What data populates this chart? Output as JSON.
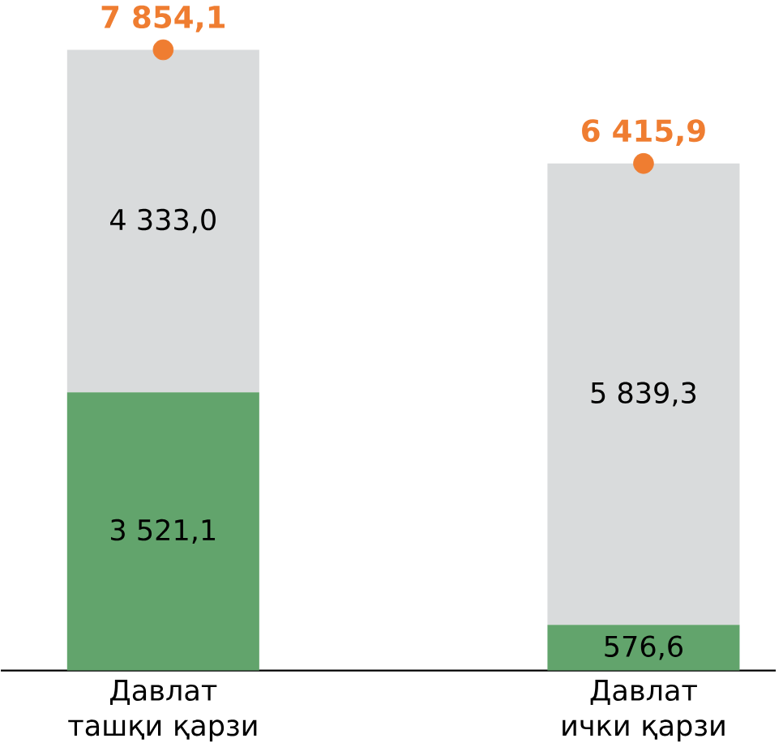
{
  "chart_data": {
    "type": "bar",
    "stacked": true,
    "categories": [
      "Давлат ташқи қарзи",
      "Давлат ички қарзи"
    ],
    "series": [
      {
        "color": "#62a46c",
        "values": [
          3521.1,
          576.6
        ],
        "value_labels": [
          "3 521,1",
          "576,6"
        ]
      },
      {
        "color": "#d9dbdc",
        "values": [
          4333.0,
          5839.3
        ],
        "value_labels": [
          "4 333,0",
          "5 839,3"
        ]
      },
      {
        "type": "scatter",
        "color": "#ef7d31",
        "marker": "circle",
        "values": [
          7854.1,
          6415.9
        ],
        "value_labels": [
          "7 854,1",
          "6 415,9"
        ]
      }
    ]
  }
}
